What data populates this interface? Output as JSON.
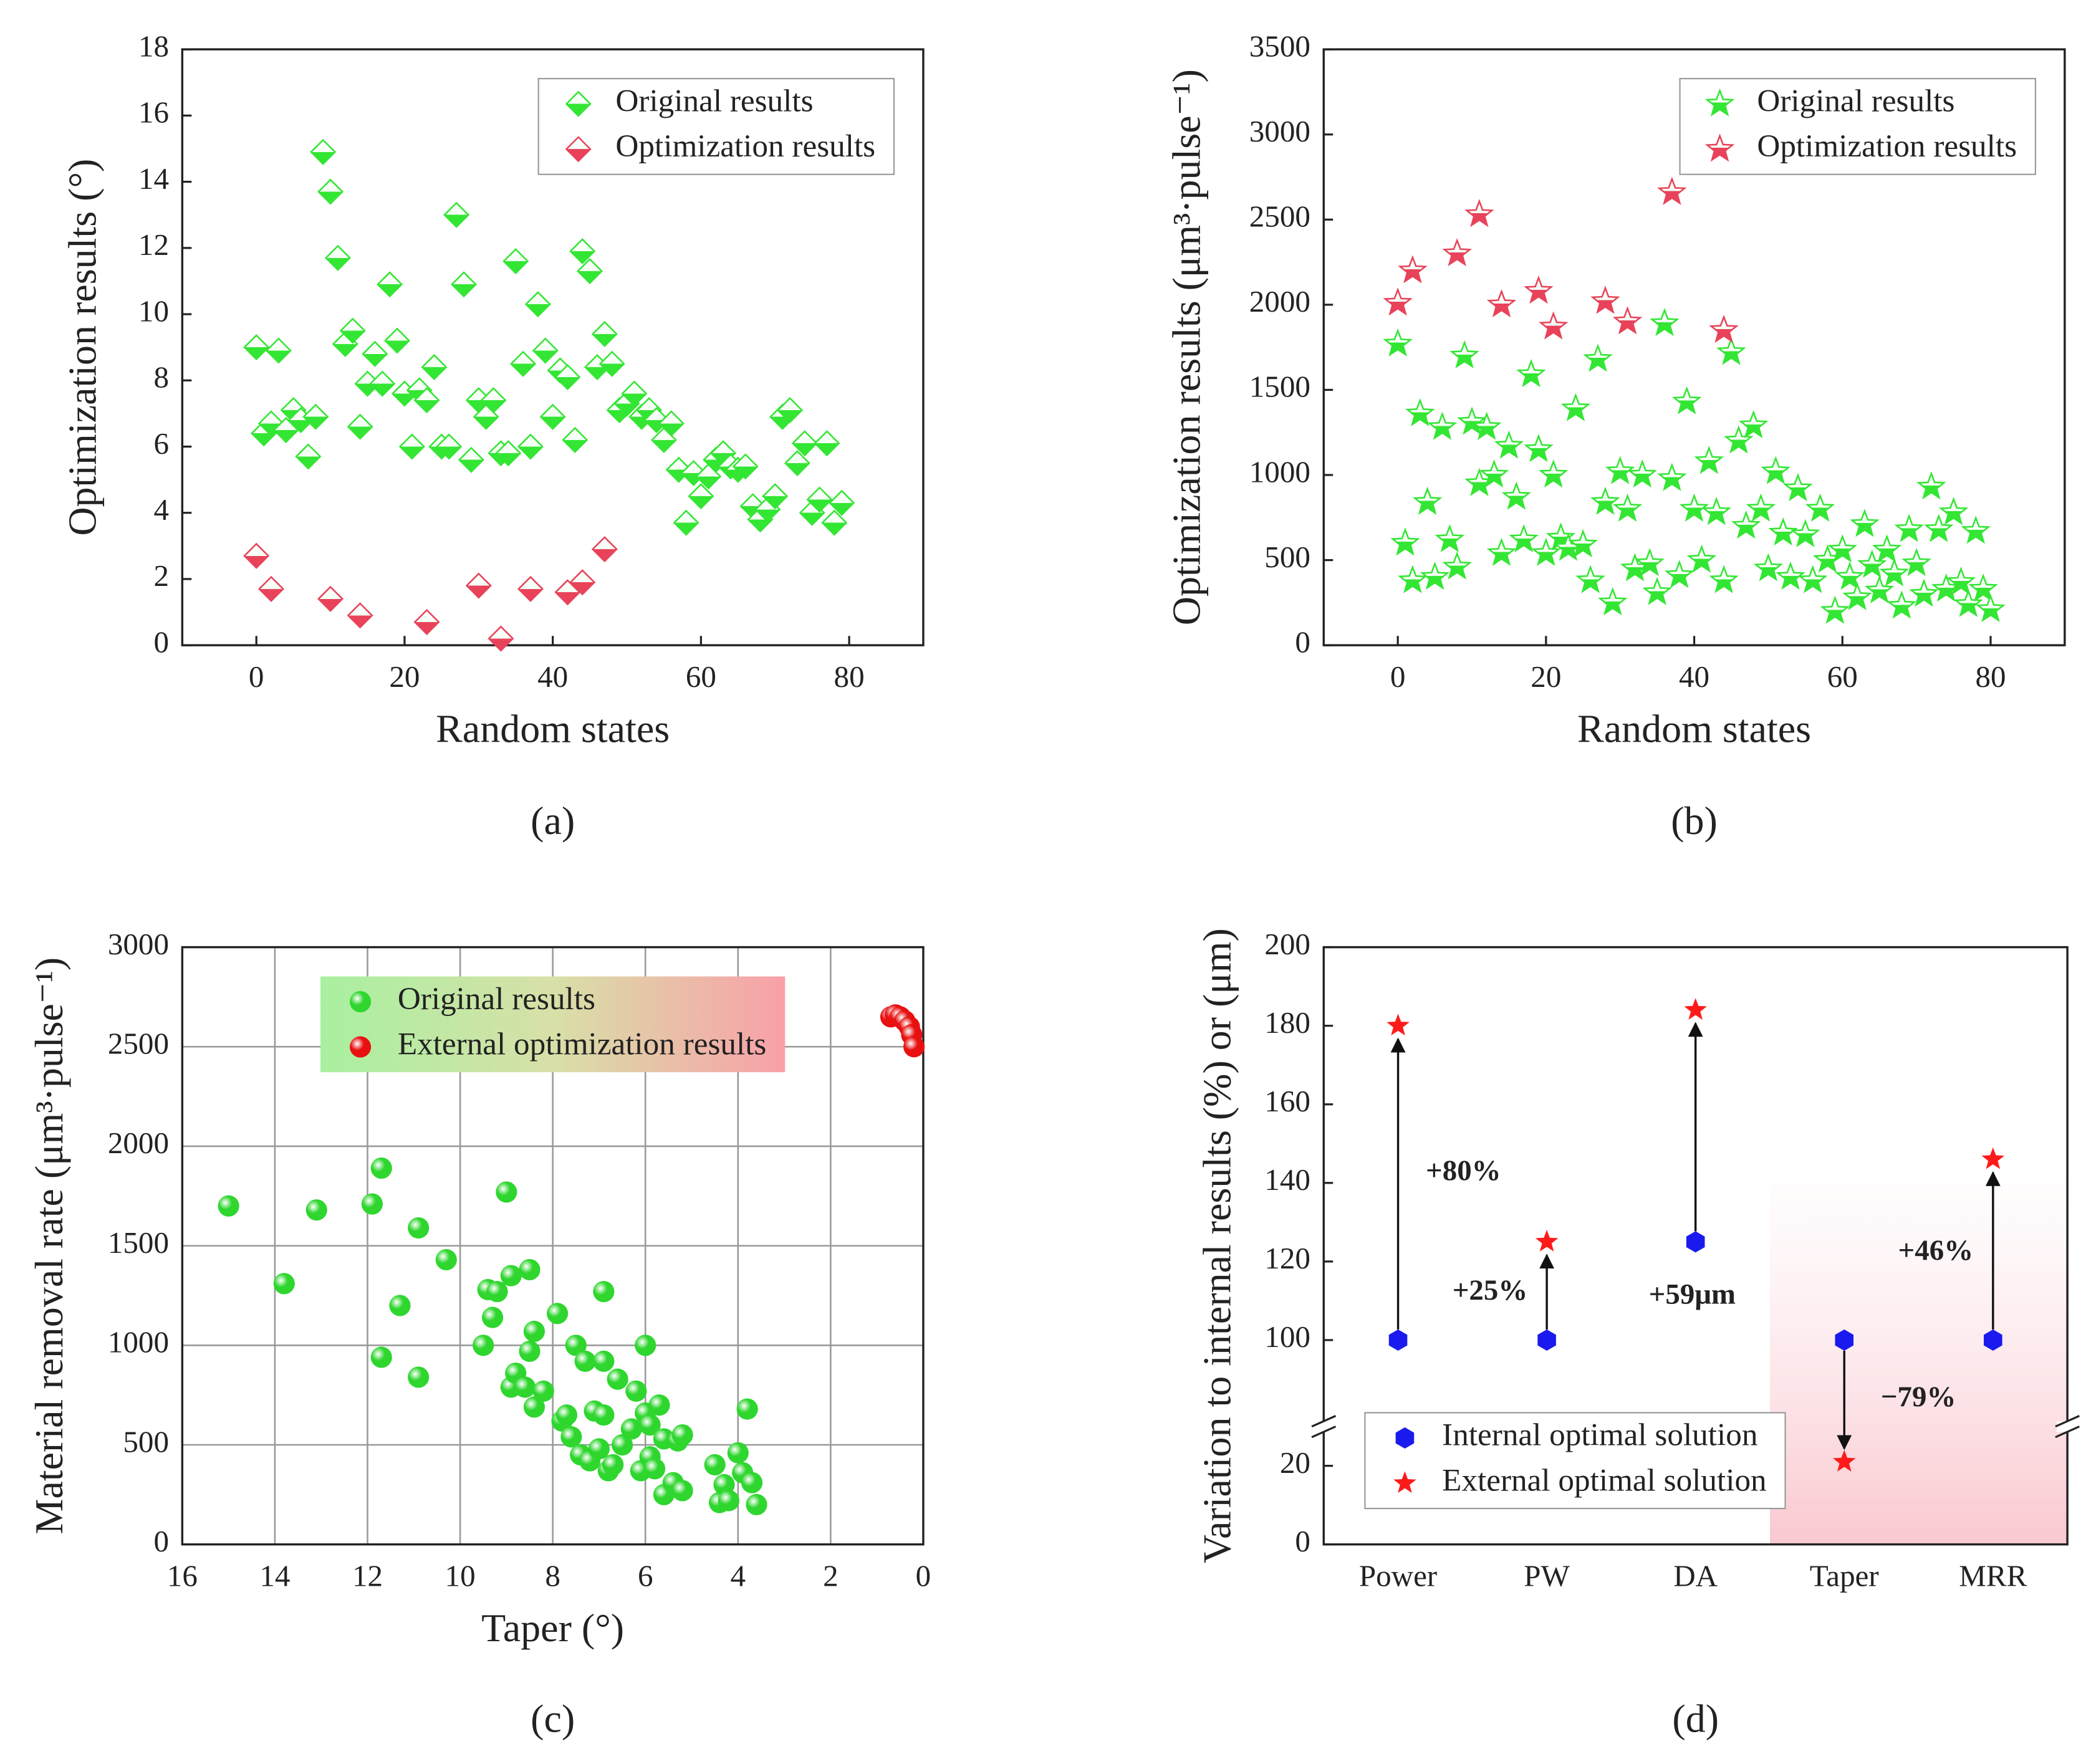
{
  "chart_data": [
    {
      "type": "scatter",
      "panel_label": "(a)",
      "xlabel": "Random states",
      "ylabel": "Optimization results (°)",
      "xlim": [
        -10,
        90
      ],
      "xticks": [
        0,
        20,
        40,
        60,
        80
      ],
      "ylim": [
        0,
        18
      ],
      "yticks": [
        0,
        2,
        4,
        6,
        8,
        10,
        12,
        14,
        16,
        18
      ],
      "grid": false,
      "legend": "upper right",
      "series": [
        {
          "name": "Original results",
          "color": "#33e633",
          "marker": "diamond",
          "x": [
            0,
            1,
            2,
            3,
            4,
            5,
            6,
            7,
            8,
            9,
            10,
            11,
            12,
            13,
            14,
            15,
            16,
            17,
            18,
            19,
            20,
            21,
            22,
            23,
            24,
            25,
            26,
            27,
            28,
            29,
            30,
            31,
            32,
            33,
            34,
            35,
            36,
            37,
            38,
            39,
            40,
            41,
            42,
            43,
            44,
            45,
            46,
            47,
            48,
            49,
            50,
            51,
            52,
            53,
            54,
            55,
            56,
            57,
            58,
            59,
            60,
            61,
            62,
            63,
            64,
            65,
            66,
            67,
            68,
            69,
            70,
            71,
            72,
            73,
            74,
            75,
            76,
            77,
            78,
            79
          ],
          "values": [
            9.0,
            6.4,
            6.7,
            8.9,
            6.5,
            7.1,
            6.8,
            5.7,
            6.9,
            14.9,
            13.7,
            11.7,
            9.1,
            9.5,
            6.6,
            7.9,
            8.8,
            7.9,
            10.9,
            9.2,
            7.6,
            6.0,
            7.7,
            7.4,
            8.4,
            6.0,
            6.0,
            13.0,
            10.9,
            5.6,
            7.4,
            6.9,
            7.4,
            5.8,
            5.8,
            11.6,
            8.5,
            6.0,
            10.3,
            8.9,
            6.9,
            8.3,
            8.1,
            6.2,
            11.9,
            11.3,
            8.4,
            9.4,
            8.5,
            7.1,
            7.3,
            7.6,
            6.9,
            7.1,
            6.8,
            6.2,
            6.7,
            5.3,
            3.7,
            5.2,
            4.5,
            5.1,
            5.6,
            5.8,
            5.4,
            5.3,
            5.4,
            4.2,
            3.8,
            4.1,
            4.5,
            6.9,
            7.1,
            5.5,
            6.1,
            4.0,
            4.4,
            6.1,
            3.7,
            4.3
          ]
        },
        {
          "name": "Optimization results",
          "color": "#e8435a",
          "marker": "diamond",
          "x": [
            0,
            2,
            10,
            14,
            23,
            30,
            33,
            37,
            42,
            44,
            47
          ],
          "values": [
            2.7,
            1.7,
            1.4,
            0.9,
            0.7,
            1.8,
            0.2,
            1.7,
            1.6,
            1.9,
            2.9
          ]
        }
      ]
    },
    {
      "type": "scatter",
      "panel_label": "(b)",
      "xlabel": "Random states",
      "ylabel": "Optimization results (μm³·pulse⁻¹)",
      "xlim": [
        -10,
        90
      ],
      "xticks": [
        0,
        20,
        40,
        60,
        80
      ],
      "ylim": [
        0,
        3500
      ],
      "yticks": [
        0,
        500,
        1000,
        1500,
        2000,
        2500,
        3000,
        3500
      ],
      "grid": false,
      "legend": "upper right",
      "series": [
        {
          "name": "Original results",
          "color": "#33e633",
          "marker": "star",
          "x": [
            0,
            1,
            2,
            3,
            4,
            5,
            6,
            7,
            8,
            9,
            10,
            11,
            12,
            13,
            14,
            15,
            16,
            17,
            18,
            19,
            20,
            21,
            22,
            23,
            24,
            25,
            26,
            27,
            28,
            29,
            30,
            31,
            32,
            33,
            34,
            35,
            36,
            37,
            38,
            39,
            40,
            41,
            42,
            43,
            44,
            45,
            46,
            47,
            48,
            49,
            50,
            51,
            52,
            53,
            54,
            55,
            56,
            57,
            58,
            59,
            60,
            61,
            62,
            63,
            64,
            65,
            66,
            67,
            68,
            69,
            70,
            71,
            72,
            73,
            74,
            75,
            76,
            77,
            78,
            79,
            80
          ],
          "values": [
            1770,
            600,
            380,
            1360,
            840,
            400,
            1280,
            620,
            460,
            1700,
            1310,
            950,
            1280,
            1000,
            540,
            1170,
            870,
            620,
            1590,
            1150,
            540,
            1000,
            630,
            570,
            1390,
            590,
            380,
            1680,
            840,
            250,
            1020,
            800,
            450,
            1000,
            480,
            310,
            1890,
            980,
            410,
            1430,
            800,
            500,
            1080,
            780,
            380,
            1720,
            1200,
            700,
            1290,
            800,
            450,
            1020,
            660,
            400,
            920,
            650,
            380,
            800,
            500,
            200,
            560,
            400,
            280,
            710,
            470,
            320,
            560,
            420,
            230,
            680,
            480,
            300,
            930,
            680,
            330,
            780,
            370,
            240,
            670,
            330,
            210
          ]
        },
        {
          "name": "Optimization results",
          "color": "#e8435a",
          "marker": "star",
          "x": [
            0,
            2,
            8,
            11,
            14,
            19,
            21,
            28,
            31,
            37,
            44
          ],
          "values": [
            2010,
            2200,
            2300,
            2530,
            2000,
            2080,
            1870,
            2020,
            1900,
            2660,
            1850
          ]
        }
      ]
    },
    {
      "type": "scatter",
      "panel_label": "(c)",
      "xlabel": "Taper (°)",
      "ylabel": "Material removal rate (μm³·pulse⁻¹)",
      "xlim": [
        16,
        0
      ],
      "xticks": [
        16,
        14,
        12,
        10,
        8,
        6,
        4,
        2,
        0
      ],
      "ylim": [
        0,
        3000
      ],
      "yticks": [
        0,
        500,
        1000,
        1500,
        2000,
        2500,
        3000
      ],
      "grid": true,
      "legend": "upper center",
      "series": [
        {
          "name": "Original results",
          "color": "#2ed62e",
          "marker": "ball",
          "x": [
            15,
            13.8,
            13.1,
            11.9,
            11.7,
            11.7,
            11.3,
            10.9,
            10.9,
            10.3,
            9.5,
            9.4,
            9.3,
            9.2,
            9.0,
            8.9,
            8.9,
            8.8,
            8.6,
            8.5,
            8.5,
            8.4,
            8.4,
            8.2,
            7.9,
            7.8,
            7.7,
            7.6,
            7.5,
            7.4,
            7.3,
            7.2,
            7.1,
            7.0,
            6.9,
            6.9,
            6.9,
            6.8,
            6.7,
            6.6,
            6.5,
            6.3,
            6.2,
            6.1,
            6.0,
            6.0,
            5.9,
            5.9,
            5.8,
            5.7,
            5.6,
            5.6,
            5.4,
            5.3,
            5.2,
            5.2,
            4.5,
            4.4,
            4.3,
            4.2,
            4.0,
            3.9,
            3.8,
            3.7,
            3.6
          ],
          "values": [
            1700,
            1310,
            1680,
            1710,
            1890,
            940,
            1200,
            1590,
            840,
            1430,
            1000,
            1280,
            1140,
            1270,
            1770,
            1350,
            790,
            860,
            790,
            970,
            1380,
            1070,
            690,
            770,
            1160,
            620,
            650,
            540,
            1000,
            450,
            920,
            420,
            670,
            480,
            920,
            650,
            1270,
            370,
            400,
            830,
            500,
            580,
            770,
            370,
            660,
            1000,
            440,
            600,
            380,
            700,
            250,
            530,
            310,
            520,
            550,
            270,
            400,
            210,
            300,
            220,
            460,
            360,
            680,
            310,
            200
          ]
        },
        {
          "name": "External optimization results",
          "color": "#e81010",
          "marker": "ball",
          "x": [
            0.7,
            0.6,
            0.5,
            0.4,
            0.3,
            0.25,
            0.2
          ],
          "values": [
            2650,
            2660,
            2650,
            2630,
            2600,
            2560,
            2500
          ]
        }
      ]
    },
    {
      "type": "dot",
      "panel_label": "(d)",
      "ylabel": "Variation to internal results (%) or (μm)",
      "categories": [
        "Power",
        "PW",
        "DA",
        "Taper",
        "MRR"
      ],
      "ylim": [
        0,
        200
      ],
      "y_break": [
        30,
        78
      ],
      "yticks": [
        0,
        20,
        100,
        120,
        140,
        160,
        180,
        200
      ],
      "grid": false,
      "legend": "lower left",
      "series": [
        {
          "name": "Internal optimal solution",
          "color": "#1a1aee",
          "marker": "hexagon",
          "values": [
            100,
            100,
            125,
            100,
            100
          ]
        },
        {
          "name": "External optimal solution",
          "color": "#ff1a1a",
          "marker": "solid-star",
          "values": [
            180,
            125,
            184,
            21,
            146
          ]
        }
      ],
      "annotations": [
        "+80%",
        "+25%",
        "+59μm",
        "−79%",
        "+46%"
      ]
    }
  ]
}
